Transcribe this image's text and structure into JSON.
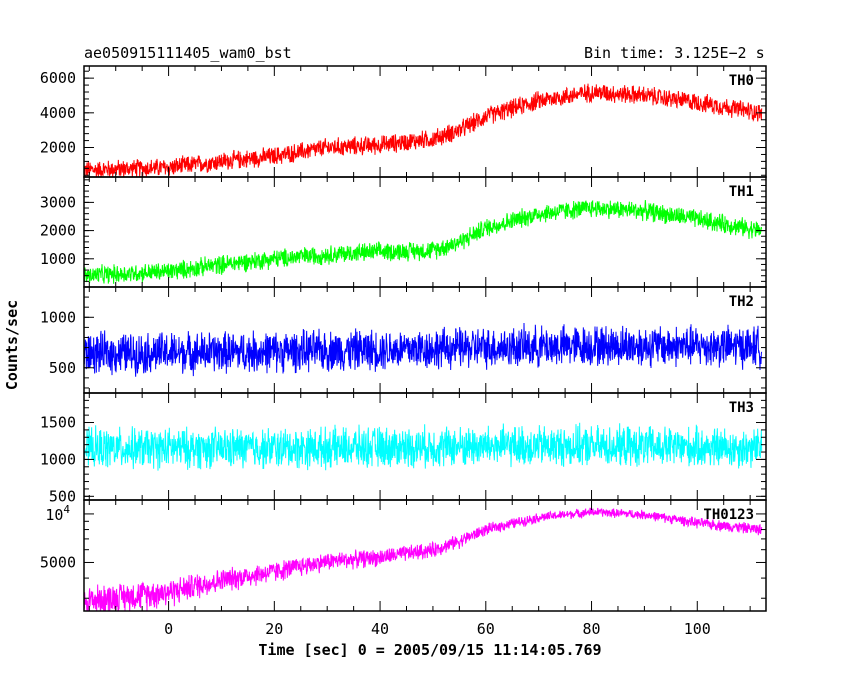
{
  "header": {
    "title": "ae050915111405_wam0_bst",
    "bin_time": "Bin time: 3.125E−2 s"
  },
  "chart_data": {
    "type": "line",
    "xlabel": "Time [sec] 0 = 2005/09/15 11:14:05.769",
    "ylabel": "Counts/sec",
    "xlim": [
      -16,
      113
    ],
    "x_ticks": [
      0,
      20,
      40,
      60,
      80,
      100
    ],
    "x_range_data": [
      -16,
      112
    ],
    "panels": [
      {
        "name": "TH0",
        "color": "#ff0000",
        "ylim": [
          300,
          6700
        ],
        "y_ticks": [
          2000,
          4000,
          6000
        ],
        "y_tick_labels": [
          "2000",
          "4000",
          "6000"
        ],
        "noise": 450,
        "envelope": [
          [
            -16,
            700
          ],
          [
            0,
            850
          ],
          [
            10,
            1200
          ],
          [
            20,
            1500
          ],
          [
            30,
            2000
          ],
          [
            40,
            2150
          ],
          [
            50,
            2500
          ],
          [
            55,
            3000
          ],
          [
            60,
            3800
          ],
          [
            70,
            4700
          ],
          [
            80,
            5200
          ],
          [
            90,
            5000
          ],
          [
            100,
            4600
          ],
          [
            112,
            4000
          ]
        ]
      },
      {
        "name": "TH1",
        "color": "#00ff00",
        "ylim": [
          0,
          3900
        ],
        "y_ticks": [
          1000,
          2000,
          3000
        ],
        "y_tick_labels": [
          "1000",
          "2000",
          "3000"
        ],
        "noise": 280,
        "envelope": [
          [
            -16,
            400
          ],
          [
            0,
            550
          ],
          [
            10,
            800
          ],
          [
            20,
            1000
          ],
          [
            30,
            1150
          ],
          [
            40,
            1250
          ],
          [
            50,
            1300
          ],
          [
            55,
            1600
          ],
          [
            60,
            2100
          ],
          [
            70,
            2600
          ],
          [
            80,
            2800
          ],
          [
            90,
            2700
          ],
          [
            100,
            2400
          ],
          [
            112,
            2000
          ]
        ]
      },
      {
        "name": "TH2",
        "color": "#0000ff",
        "ylim": [
          250,
          1300
        ],
        "y_ticks": [
          500,
          1000
        ],
        "y_tick_labels": [
          "500",
          "1000"
        ],
        "noise": 170,
        "envelope": [
          [
            -16,
            640
          ],
          [
            20,
            660
          ],
          [
            40,
            680
          ],
          [
            60,
            700
          ],
          [
            80,
            720
          ],
          [
            112,
            710
          ]
        ]
      },
      {
        "name": "TH3",
        "color": "#00ffff",
        "ylim": [
          450,
          1900
        ],
        "y_ticks": [
          500,
          1000,
          1500
        ],
        "y_tick_labels": [
          "500",
          "1000",
          "1500"
        ],
        "noise": 230,
        "envelope": [
          [
            -16,
            1150
          ],
          [
            20,
            1150
          ],
          [
            60,
            1180
          ],
          [
            80,
            1180
          ],
          [
            112,
            1150
          ]
        ]
      },
      {
        "name": "TH0123",
        "color": "#ff00ff",
        "ylim": [
          2500,
          12200
        ],
        "log": true,
        "y_ticks": [
          5000,
          10000
        ],
        "y_tick_labels": [
          "5000",
          "10^4"
        ],
        "noise": 550,
        "envelope": [
          [
            -16,
            2900
          ],
          [
            0,
            3300
          ],
          [
            10,
            3900
          ],
          [
            20,
            4400
          ],
          [
            30,
            5100
          ],
          [
            40,
            5400
          ],
          [
            50,
            6000
          ],
          [
            55,
            6800
          ],
          [
            60,
            8000
          ],
          [
            70,
            9500
          ],
          [
            80,
            10300
          ],
          [
            90,
            9900
          ],
          [
            100,
            8800
          ],
          [
            112,
            8000
          ]
        ]
      }
    ]
  }
}
